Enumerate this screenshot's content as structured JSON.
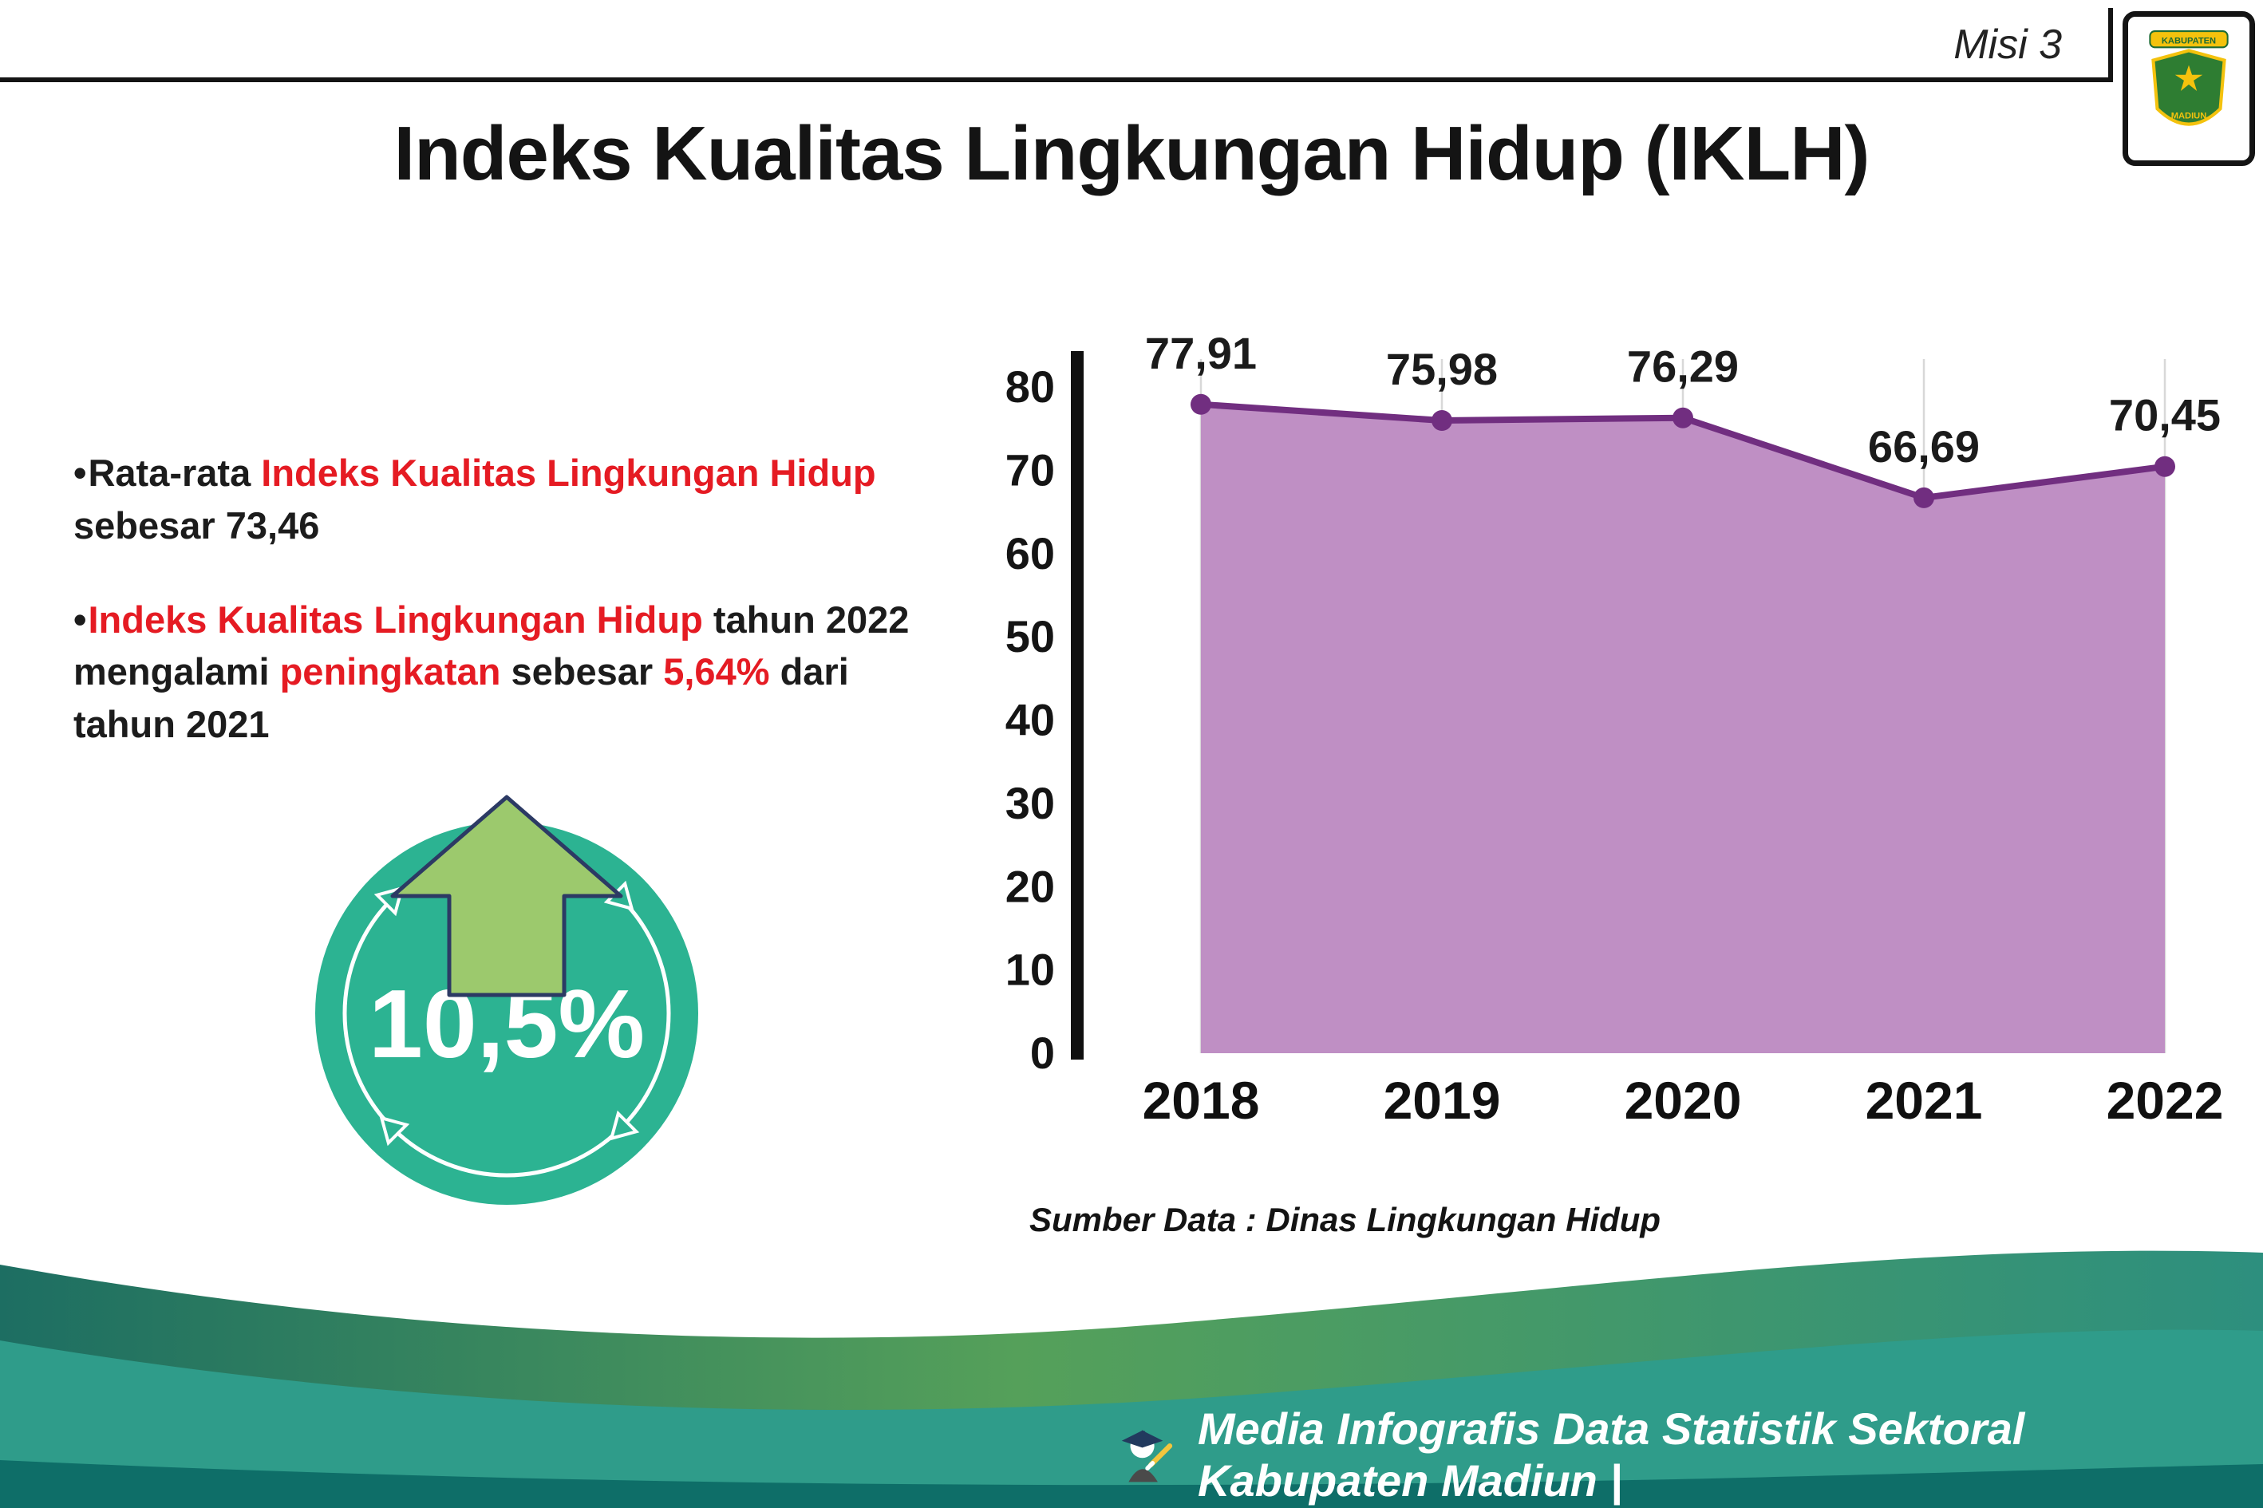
{
  "header": {
    "misi_label": "Misi 3",
    "title": "Indeks Kualitas Lingkungan Hidup (IKLH)",
    "logo": {
      "top_text": "KABUPATEN",
      "bottom_text": "MADIUN"
    }
  },
  "bullets": [
    {
      "segments": [
        {
          "text": "Rata-rata ",
          "color": "black"
        },
        {
          "text": "Indeks Kualitas Lingkungan Hidup",
          "color": "red"
        },
        {
          "text": " sebesar 73,46",
          "color": "black"
        }
      ]
    },
    {
      "segments": [
        {
          "text": "Indeks Kualitas Lingkungan Hidup",
          "color": "red"
        },
        {
          "text": " tahun 2022 mengalami ",
          "color": "black"
        },
        {
          "text": "peningkatan",
          "color": "red"
        },
        {
          "text": " sebesar ",
          "color": "black"
        },
        {
          "text": "5,64%",
          "color": "red"
        },
        {
          "text": " dari tahun 2021",
          "color": "black"
        }
      ]
    }
  ],
  "badge": {
    "value": "10,5%"
  },
  "chart_data": {
    "type": "area",
    "categories": [
      "2018",
      "2019",
      "2020",
      "2021",
      "2022"
    ],
    "values": [
      77.91,
      75.98,
      76.29,
      66.69,
      70.45
    ],
    "value_labels": [
      "77,91",
      "75,98",
      "76,29",
      "66,69",
      "70,45"
    ],
    "title": "",
    "xlabel": "",
    "ylabel": "",
    "ylim": [
      0,
      80
    ],
    "yticks": [
      0,
      10,
      20,
      30,
      40,
      50,
      60,
      70,
      80
    ],
    "grid": "vertical-light",
    "legend": "none",
    "area_color": "#bf8fc4",
    "line_color": "#712e80",
    "source_note": "Sumber Data : Dinas Lingkungan Hidup"
  },
  "footer": {
    "credit": "Media Infografis Data Statistik Sektoral Kabupaten Madiun |"
  },
  "colors": {
    "accent_red": "#e51b23",
    "badge_teal": "#2cb392",
    "arrow_green": "#9cc96d",
    "footer_teal": "#2f9c8a",
    "footer_dark": "#0e6e68"
  }
}
